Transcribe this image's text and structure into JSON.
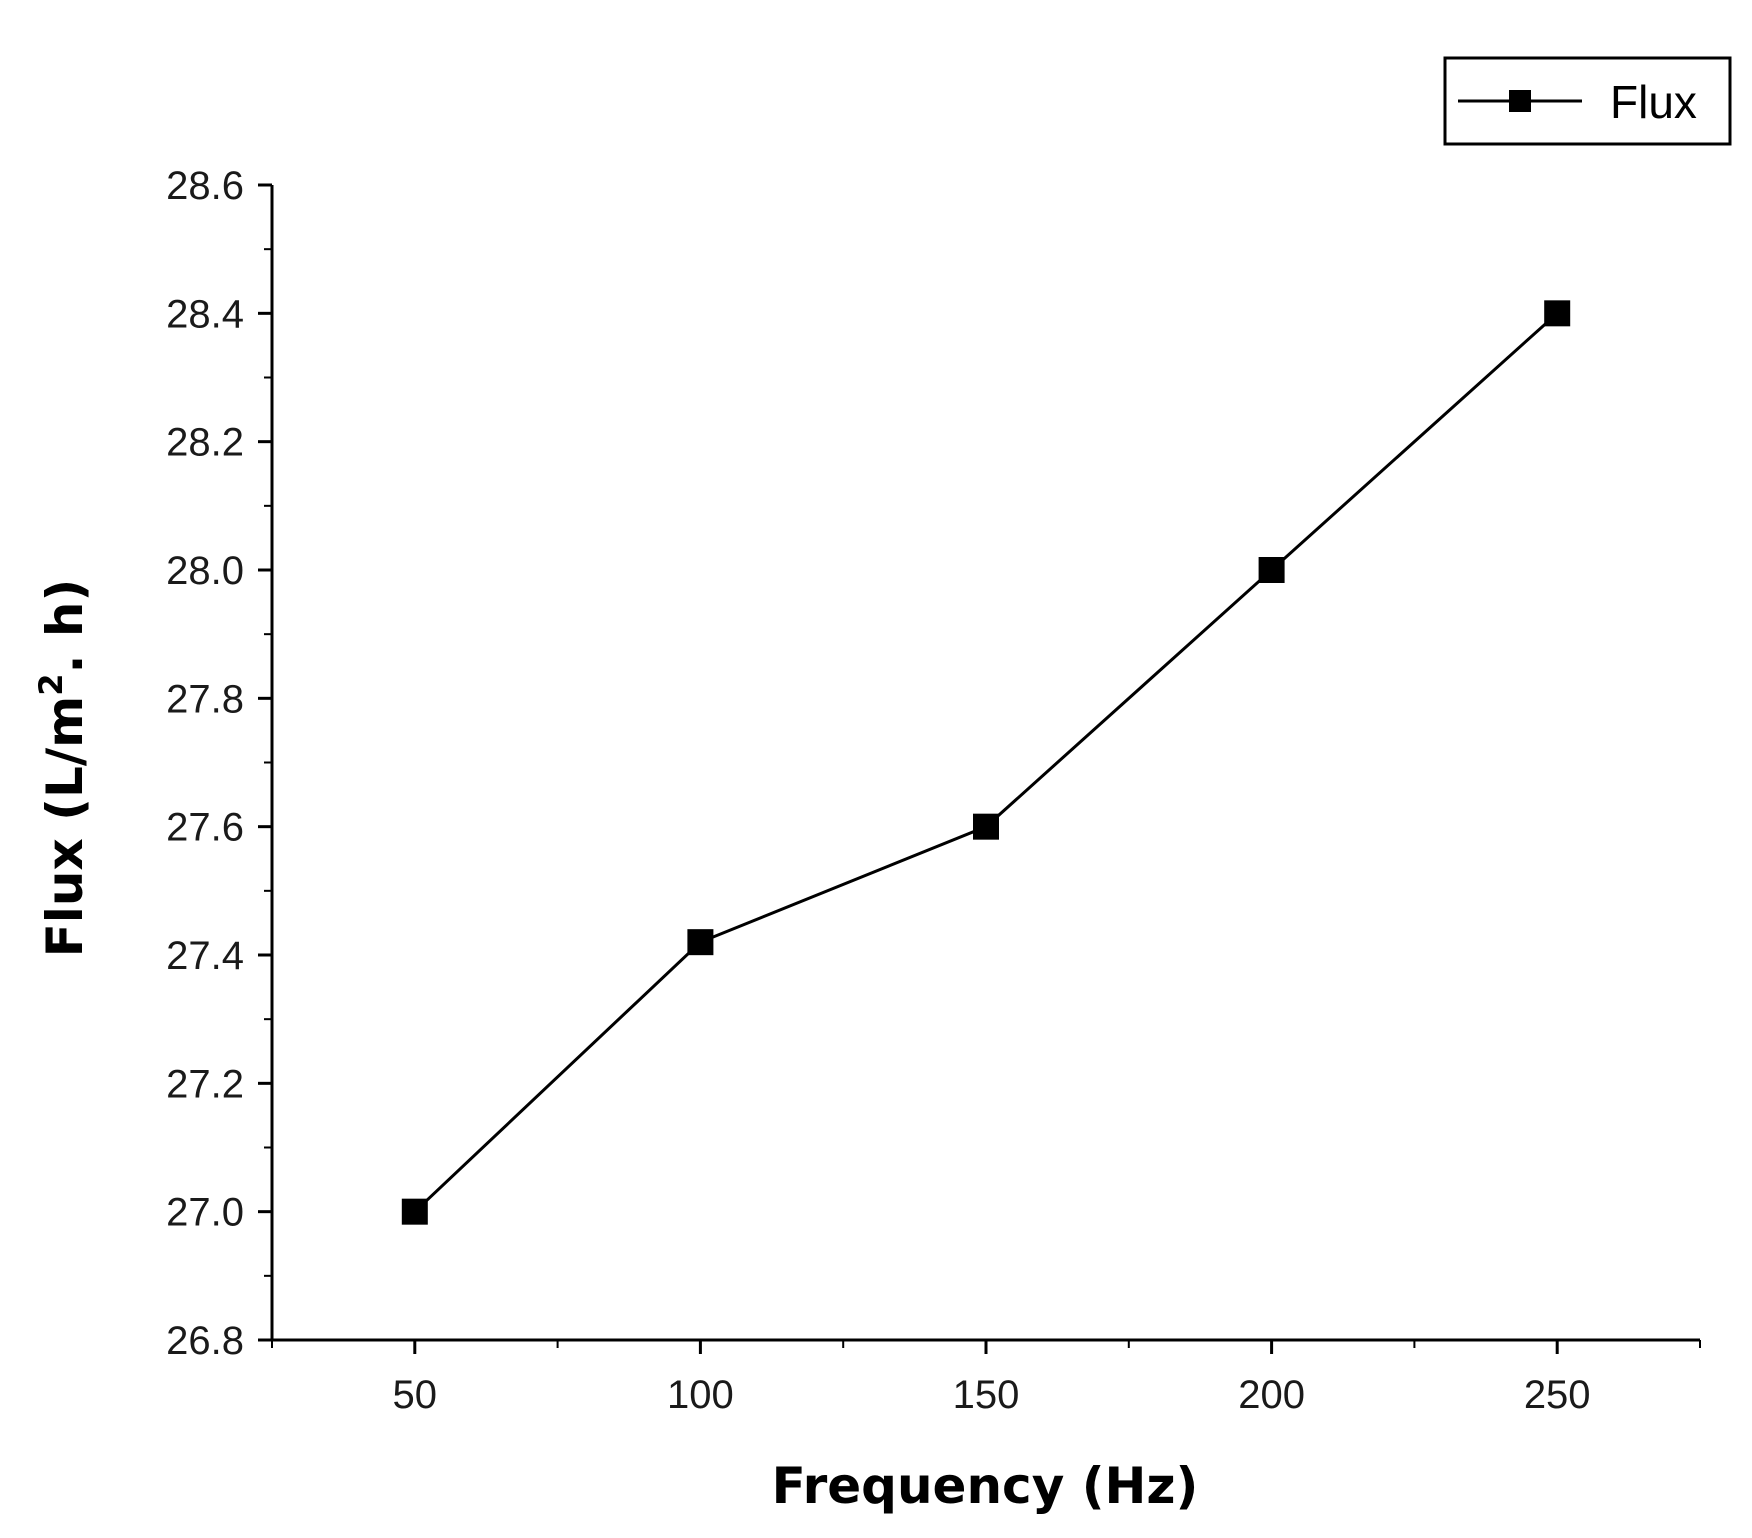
{
  "chart_data": {
    "type": "line",
    "title": "",
    "xlabel": "Frequency (Hz)",
    "ylabel": {
      "prefix": "Flux (L/m",
      "superscript": "2",
      "suffix": ". h)"
    },
    "xlim": [
      25,
      275
    ],
    "ylim": [
      26.8,
      28.6
    ],
    "xticks": [
      50,
      100,
      150,
      200,
      250
    ],
    "xtick_labels": [
      "50",
      "100",
      "150",
      "200",
      "250"
    ],
    "yticks": [
      26.8,
      27.0,
      27.2,
      27.4,
      27.6,
      27.8,
      28.0,
      28.2,
      28.4,
      28.6
    ],
    "ytick_labels": [
      "26.8",
      "27.0",
      "27.2",
      "27.4",
      "27.6",
      "27.8",
      "28.0",
      "28.2",
      "28.4",
      "28.6"
    ],
    "grid": false,
    "legend_position": "top-right",
    "series": [
      {
        "name": "Flux",
        "color": "#000000",
        "marker": "square",
        "x": [
          50,
          100,
          150,
          200,
          250
        ],
        "y": [
          27.0,
          27.42,
          27.6,
          28.0,
          28.4
        ]
      }
    ]
  }
}
